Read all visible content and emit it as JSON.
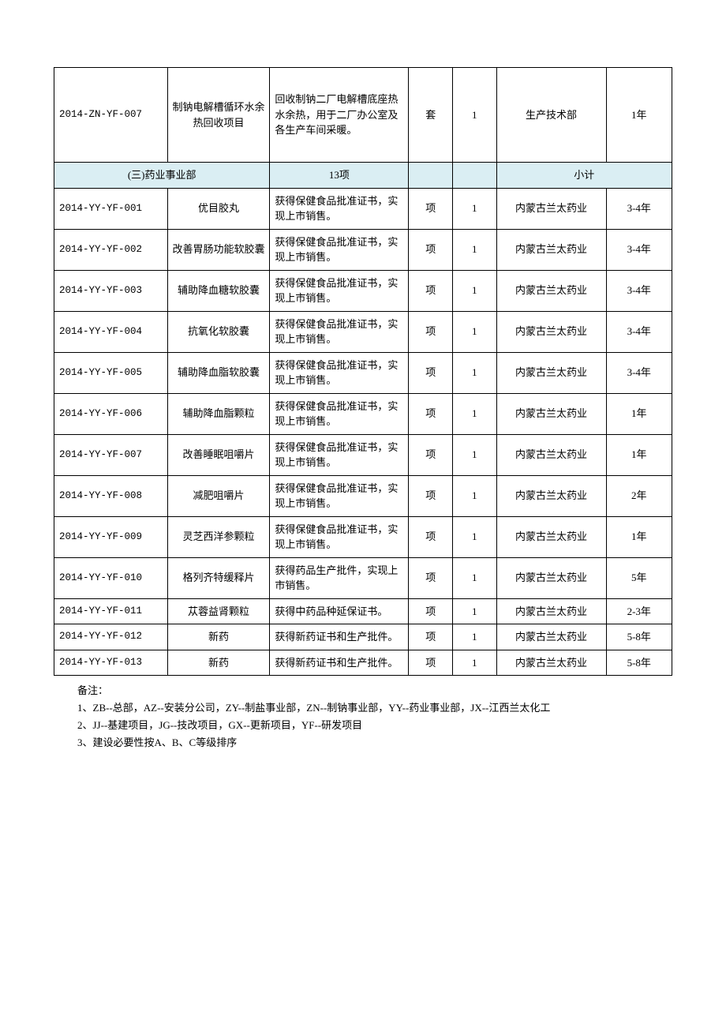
{
  "table": {
    "section_bg": "#daeef3",
    "border_color": "#000000",
    "first_row": {
      "code": "2014-ZN-YF-007",
      "name": "制钠电解槽循环水余热回收项目",
      "desc": "回收制钠二厂电解槽底座热水余热，用于二厂办公室及各生产车间采暖。",
      "unit": "套",
      "qty": "1",
      "dept": "生产技术部",
      "duration": "1年"
    },
    "section": {
      "title": "(三)药业事业部",
      "count": "13项",
      "subtotal": "小计"
    },
    "rows": [
      {
        "code": "2014-YY-YF-001",
        "name": "优目胶丸",
        "desc": "获得保健食品批准证书，实现上市销售。",
        "unit": "项",
        "qty": "1",
        "dept": "内蒙古兰太药业",
        "duration": "3-4年"
      },
      {
        "code": "2014-YY-YF-002",
        "name": "改善胃肠功能软胶囊",
        "desc": "获得保健食品批准证书，实现上市销售。",
        "unit": "项",
        "qty": "1",
        "dept": "内蒙古兰太药业",
        "duration": "3-4年"
      },
      {
        "code": "2014-YY-YF-003",
        "name": "辅助降血糖软胶囊",
        "desc": "获得保健食品批准证书，实现上市销售。",
        "unit": "项",
        "qty": "1",
        "dept": "内蒙古兰太药业",
        "duration": "3-4年"
      },
      {
        "code": "2014-YY-YF-004",
        "name": "抗氧化软胶囊",
        "desc": "获得保健食品批准证书，实现上市销售。",
        "unit": "项",
        "qty": "1",
        "dept": "内蒙古兰太药业",
        "duration": "3-4年"
      },
      {
        "code": "2014-YY-YF-005",
        "name": "辅助降血脂软胶囊",
        "desc": "获得保健食品批准证书，实现上市销售。",
        "unit": "项",
        "qty": "1",
        "dept": "内蒙古兰太药业",
        "duration": "3-4年"
      },
      {
        "code": "2014-YY-YF-006",
        "name": "辅助降血脂颗粒",
        "desc": "获得保健食品批准证书，实现上市销售。",
        "unit": "项",
        "qty": "1",
        "dept": "内蒙古兰太药业",
        "duration": "1年"
      },
      {
        "code": "2014-YY-YF-007",
        "name": "改善睡眠咀嚼片",
        "desc": "获得保健食品批准证书，实现上市销售。",
        "unit": "项",
        "qty": "1",
        "dept": "内蒙古兰太药业",
        "duration": "1年"
      },
      {
        "code": "2014-YY-YF-008",
        "name": "减肥咀嚼片",
        "desc": "获得保健食品批准证书，实现上市销售。",
        "unit": "项",
        "qty": "1",
        "dept": "内蒙古兰太药业",
        "duration": "2年"
      },
      {
        "code": "2014-YY-YF-009",
        "name": "灵芝西洋参颗粒",
        "desc": "获得保健食品批准证书，实现上市销售。",
        "unit": "项",
        "qty": "1",
        "dept": "内蒙古兰太药业",
        "duration": "1年"
      },
      {
        "code": "2014-YY-YF-010",
        "name": "格列齐特缓释片",
        "desc": "获得药品生产批件，实现上市销售。",
        "unit": "项",
        "qty": "1",
        "dept": "内蒙古兰太药业",
        "duration": "5年"
      },
      {
        "code": "2014-YY-YF-011",
        "name": "苁蓉益肾颗粒",
        "desc": "获得中药品种延保证书。",
        "unit": "项",
        "qty": "1",
        "dept": "内蒙古兰太药业",
        "duration": "2-3年"
      },
      {
        "code": "2014-YY-YF-012",
        "name": "新药",
        "desc": "获得新药证书和生产批件。",
        "unit": "项",
        "qty": "1",
        "dept": "内蒙古兰太药业",
        "duration": "5-8年"
      },
      {
        "code": "2014-YY-YF-013",
        "name": "新药",
        "desc": "获得新药证书和生产批件。",
        "unit": "项",
        "qty": "1",
        "dept": "内蒙古兰太药业",
        "duration": "5-8年"
      }
    ]
  },
  "notes": {
    "line0": "备注：",
    "line1": "1、ZB--总部，AZ--安装分公司，ZY--制盐事业部，ZN--制钠事业部，YY--药业事业部，JX--江西兰太化工",
    "line2": "2、JJ--基建项目，JG--技改项目，GX--更新项目，YF--研发项目",
    "line3": "3、建设必要性按A、B、C等级排序"
  }
}
